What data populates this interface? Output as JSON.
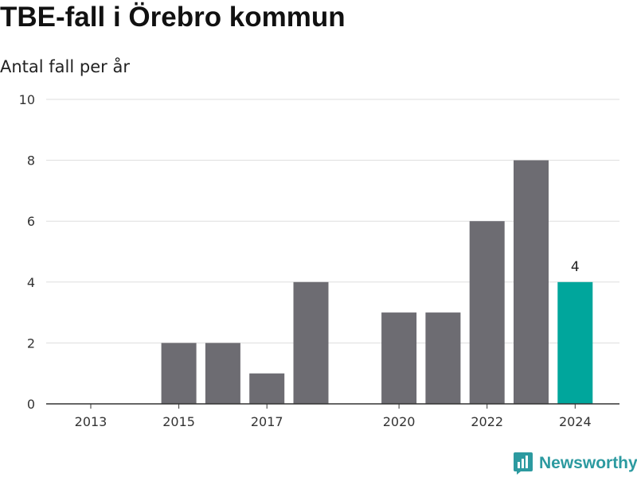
{
  "title": "TBE-fall i Örebro kommun",
  "subtitle": "Antal fall per år",
  "brand": {
    "name": "Newsworthy",
    "icon": "newsworthy-chart-logo-icon",
    "color": "#2c9aa0"
  },
  "colors": {
    "bar": "#6d6c72",
    "highlight": "#00a69c",
    "grid": "#dddddd",
    "axis": "#333333"
  },
  "chart_data": {
    "type": "bar",
    "title": "TBE-fall i Örebro kommun",
    "ylabel": "Antal fall per år",
    "xlabel": "",
    "categories": [
      "2013",
      "2014",
      "2015",
      "2016",
      "2017",
      "2018",
      "2019",
      "2020",
      "2021",
      "2022",
      "2023",
      "2024"
    ],
    "values": [
      0,
      0,
      2,
      2,
      1,
      4,
      0,
      3,
      3,
      6,
      8,
      4
    ],
    "x_tick_labels": [
      "2013",
      "2015",
      "2017",
      "2020",
      "2022",
      "2024"
    ],
    "y_ticks": [
      0,
      2,
      4,
      6,
      8,
      10
    ],
    "ylim": [
      0,
      10
    ],
    "grid": true,
    "highlight": {
      "category": "2024",
      "label": "4"
    }
  }
}
